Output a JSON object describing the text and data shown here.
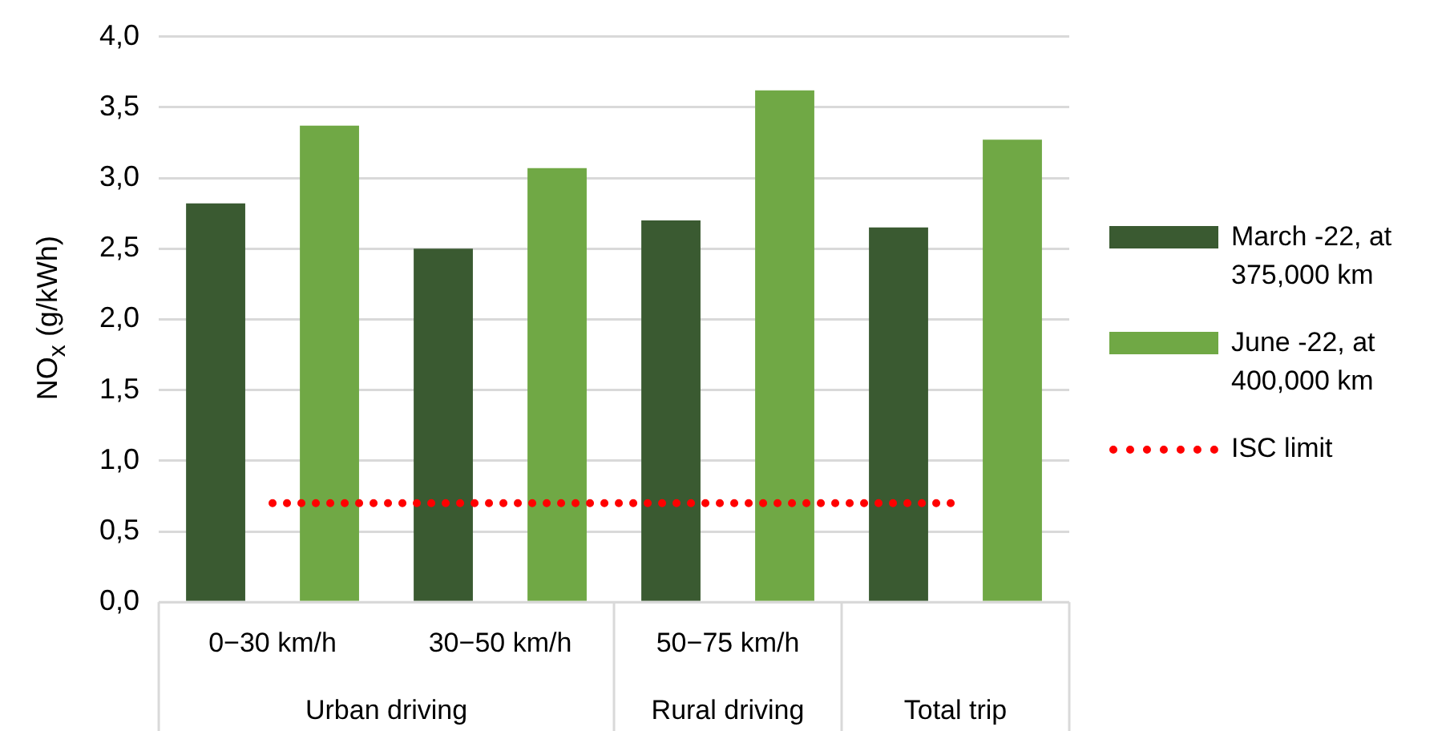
{
  "chart_data": {
    "type": "bar",
    "ylabel": "NO$_{x}$ (g/kWh)",
    "categories": [
      "0−30 km/h",
      "30−50 km/h",
      "50−75 km/h",
      null
    ],
    "series": [
      {
        "name": "March -22, at 375,000 km",
        "color": "#3a5a31",
        "values": [
          2.82,
          2.5,
          2.7,
          2.65
        ]
      },
      {
        "name": "June -22, at 400,000 km",
        "color": "#70a845",
        "values": [
          3.37,
          3.07,
          3.62,
          3.27
        ]
      }
    ],
    "ylim": [
      0,
      4
    ],
    "yticks": [
      {
        "value": 0,
        "label": "0,0"
      },
      {
        "value": 0.5,
        "label": "0,5"
      },
      {
        "value": 1,
        "label": "1,0"
      },
      {
        "value": 1.5,
        "label": "1,5"
      },
      {
        "value": 2,
        "label": "2,0"
      },
      {
        "value": 2.5,
        "label": "2,5"
      },
      {
        "value": 3,
        "label": "3,0"
      },
      {
        "value": 3.5,
        "label": "3,5"
      },
      {
        "value": 4,
        "label": "4,0"
      }
    ],
    "ref_lines": [
      {
        "axis": "y",
        "value": 0.7,
        "label": "ISC limit",
        "color": "#ff0000",
        "line_style": "dotted"
      }
    ],
    "annotations": [
      "Urban driving",
      "Rural driving",
      "Total trip"
    ],
    "grid": "y",
    "legend": "right"
  }
}
